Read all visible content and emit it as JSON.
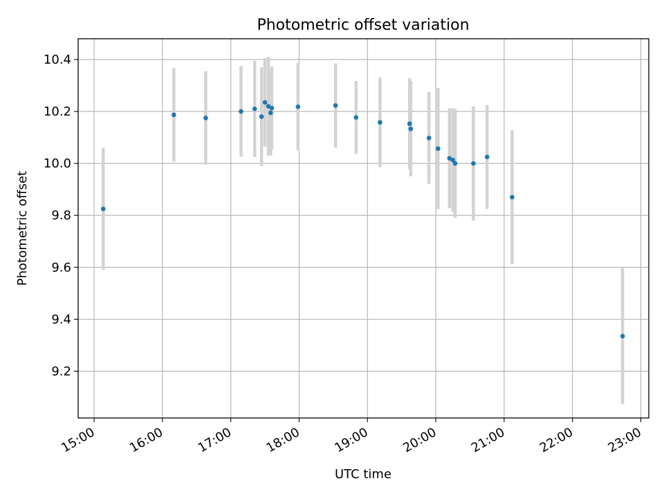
{
  "chart_data": {
    "type": "scatter",
    "title": "Photometric offset variation",
    "xlabel": "UTC time",
    "ylabel": "Photometric offset",
    "x_axis": {
      "scale": "time",
      "range": [
        "14:46",
        "23:07"
      ],
      "ticks": [
        "15:00",
        "16:00",
        "17:00",
        "18:00",
        "19:00",
        "20:00",
        "21:00",
        "22:00",
        "23:00"
      ]
    },
    "y_axis": {
      "range": [
        9.02,
        10.48
      ],
      "ticks": [
        "9.2",
        "9.4",
        "9.6",
        "9.8",
        "10.0",
        "10.2",
        "10.4"
      ]
    },
    "grid": true,
    "series": [
      {
        "marker_color": "#1f77b4",
        "errorbar_color": "#d3d3d3",
        "points": [
          {
            "x": "15:08",
            "y": 9.825,
            "yerr": 0.235
          },
          {
            "x": "16:10",
            "y": 10.187,
            "yerr": 0.18
          },
          {
            "x": "16:38",
            "y": 10.175,
            "yerr": 0.18
          },
          {
            "x": "17:09",
            "y": 10.2,
            "yerr": 0.175
          },
          {
            "x": "17:21",
            "y": 10.21,
            "yerr": 0.185
          },
          {
            "x": "17:27",
            "y": 10.18,
            "yerr": 0.19
          },
          {
            "x": "17:30",
            "y": 10.235,
            "yerr": 0.17
          },
          {
            "x": "17:33",
            "y": 10.22,
            "yerr": 0.19
          },
          {
            "x": "17:35",
            "y": 10.195,
            "yerr": 0.165
          },
          {
            "x": "17:36",
            "y": 10.213,
            "yerr": 0.16
          },
          {
            "x": "17:59",
            "y": 10.218,
            "yerr": 0.168
          },
          {
            "x": "18:32",
            "y": 10.223,
            "yerr": 0.162
          },
          {
            "x": "18:50",
            "y": 10.177,
            "yerr": 0.14
          },
          {
            "x": "19:11",
            "y": 10.158,
            "yerr": 0.173
          },
          {
            "x": "19:37",
            "y": 10.153,
            "yerr": 0.175
          },
          {
            "x": "19:38",
            "y": 10.133,
            "yerr": 0.183
          },
          {
            "x": "19:54",
            "y": 10.098,
            "yerr": 0.177
          },
          {
            "x": "20:02",
            "y": 10.057,
            "yerr": 0.233
          },
          {
            "x": "20:12",
            "y": 10.02,
            "yerr": 0.193
          },
          {
            "x": "20:15",
            "y": 10.013,
            "yerr": 0.2
          },
          {
            "x": "20:17",
            "y": 10.0,
            "yerr": 0.21
          },
          {
            "x": "20:33",
            "y": 10.0,
            "yerr": 0.22
          },
          {
            "x": "20:45",
            "y": 10.025,
            "yerr": 0.2
          },
          {
            "x": "21:07",
            "y": 9.87,
            "yerr": 0.258
          },
          {
            "x": "22:44",
            "y": 9.335,
            "yerr": 0.262
          }
        ]
      }
    ]
  }
}
